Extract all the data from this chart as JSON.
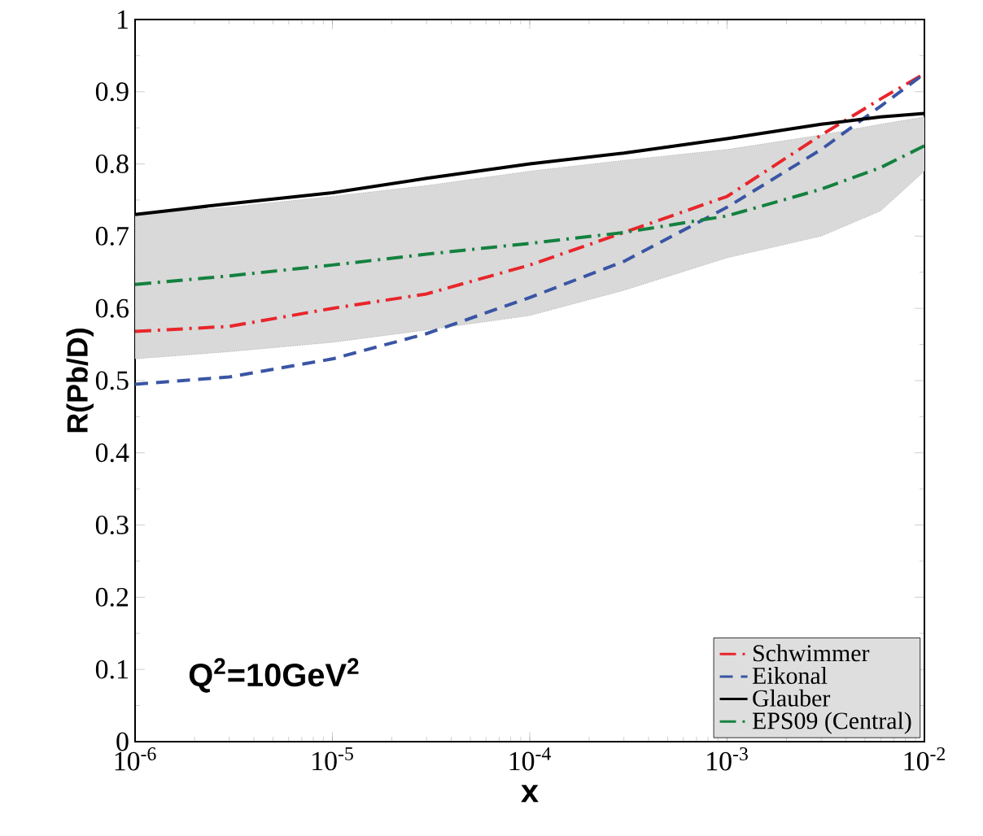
{
  "chart_data": {
    "type": "line",
    "xlabel": "x",
    "ylabel": "R(Pb/D)",
    "log": "x",
    "xlim": [
      1e-06,
      0.01
    ],
    "ylim": [
      0,
      1
    ],
    "xticks": [
      {
        "value": 1e-06,
        "label": "10$^{-6}$"
      },
      {
        "value": 1e-05,
        "label": "10$^{-5}$"
      },
      {
        "value": 0.0001,
        "label": "10$^{-4}$"
      },
      {
        "value": 0.001,
        "label": "10$^{-3}$"
      },
      {
        "value": 0.01,
        "label": "10$^{-2}$"
      }
    ],
    "yticks": [
      0,
      0.1,
      0.2,
      0.3,
      0.4,
      0.5,
      0.6,
      0.7,
      0.8,
      0.9,
      1
    ],
    "x": [
      1e-06,
      3e-06,
      1e-05,
      3e-05,
      0.0001,
      0.0003,
      0.001,
      0.003,
      0.006,
      0.01
    ],
    "series": [
      {
        "name": "Schwimmer",
        "color": "#e8262b",
        "line_style": "dashdot",
        "values": [
          0.568,
          0.575,
          0.6,
          0.62,
          0.66,
          0.705,
          0.755,
          0.84,
          0.89,
          0.925
        ]
      },
      {
        "name": "Eikonal",
        "color": "#3a55a4",
        "line_style": "dashed",
        "values": [
          0.495,
          0.505,
          0.53,
          0.565,
          0.615,
          0.665,
          0.74,
          0.82,
          0.88,
          0.925
        ]
      },
      {
        "name": "Glauber",
        "color": "#000000",
        "line_style": "solid",
        "values": [
          0.73,
          0.745,
          0.76,
          0.78,
          0.8,
          0.815,
          0.835,
          0.855,
          0.865,
          0.87
        ]
      },
      {
        "name": "EPS09 (Central)",
        "color": "#14813f",
        "line_style": "dashdot",
        "values": [
          0.633,
          0.645,
          0.66,
          0.675,
          0.69,
          0.705,
          0.728,
          0.765,
          0.795,
          0.825
        ],
        "lower": [
          0.53,
          0.54,
          0.553,
          0.57,
          0.59,
          0.625,
          0.67,
          0.7,
          0.735,
          0.79
        ],
        "upper": [
          0.73,
          0.74,
          0.755,
          0.77,
          0.79,
          0.805,
          0.82,
          0.84,
          0.855,
          0.865
        ]
      }
    ],
    "legend": "bottom right",
    "grid": false,
    "marker": "none",
    "annotations": [
      "Q$^{2}$=10GeV$^{2}$"
    ]
  }
}
